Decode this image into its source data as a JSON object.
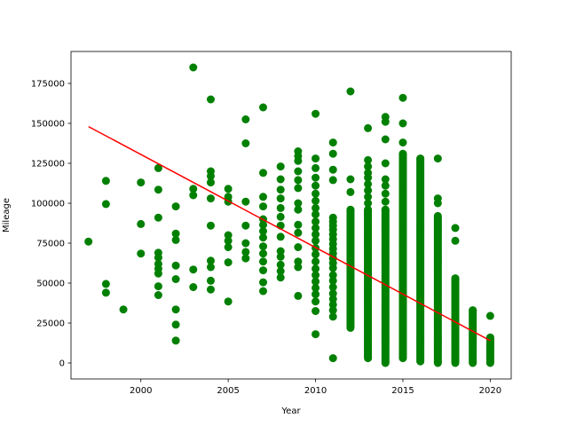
{
  "chart_data": {
    "type": "scatter",
    "title": "",
    "xlabel": "Year",
    "ylabel": "Mileage",
    "xlim": [
      1996,
      2021.2
    ],
    "ylim": [
      -10000,
      195000
    ],
    "xticks": [
      2000,
      2005,
      2010,
      2015,
      2020
    ],
    "yticks": [
      0,
      25000,
      50000,
      75000,
      100000,
      125000,
      150000,
      175000
    ],
    "xtick_labels": [
      "2000",
      "2005",
      "2010",
      "2015",
      "2020"
    ],
    "ytick_labels": [
      "0",
      "25000",
      "50000",
      "75000",
      "100000",
      "125000",
      "150000",
      "175000"
    ],
    "grid": false,
    "legend": "none",
    "series": [
      {
        "type": "scatter",
        "color": "#008000",
        "points": [
          [
            1997,
            76000
          ],
          [
            1998,
            114000
          ],
          [
            1998,
            99500
          ],
          [
            1998,
            49500
          ],
          [
            1998,
            44000
          ],
          [
            1999,
            33500
          ],
          [
            2000,
            113000
          ],
          [
            2000,
            87000
          ],
          [
            2000,
            68500
          ],
          [
            2001,
            122000
          ],
          [
            2001,
            108500
          ],
          [
            2001,
            91000
          ],
          [
            2001,
            69000
          ],
          [
            2001,
            66000
          ],
          [
            2001,
            62000
          ],
          [
            2001,
            59000
          ],
          [
            2001,
            56000
          ],
          [
            2001,
            48000
          ],
          [
            2001,
            42500
          ],
          [
            2002,
            98000
          ],
          [
            2002,
            81000
          ],
          [
            2002,
            77000
          ],
          [
            2002,
            61000
          ],
          [
            2002,
            52500
          ],
          [
            2002,
            33500
          ],
          [
            2002,
            24000
          ],
          [
            2002,
            14000
          ],
          [
            2003,
            185000
          ],
          [
            2003,
            109000
          ],
          [
            2003,
            105000
          ],
          [
            2003,
            58500
          ],
          [
            2003,
            47500
          ],
          [
            2004,
            165000
          ],
          [
            2004,
            120000
          ],
          [
            2004,
            117000
          ],
          [
            2004,
            113000
          ],
          [
            2004,
            103000
          ],
          [
            2004,
            86000
          ],
          [
            2004,
            64000
          ],
          [
            2004,
            60000
          ],
          [
            2004,
            51500
          ],
          [
            2004,
            46000
          ],
          [
            2005,
            109000
          ],
          [
            2005,
            104000
          ],
          [
            2005,
            101000
          ],
          [
            2005,
            80000
          ],
          [
            2005,
            76500
          ],
          [
            2005,
            72500
          ],
          [
            2005,
            63000
          ],
          [
            2005,
            38500
          ],
          [
            2006,
            152500
          ],
          [
            2006,
            137500
          ],
          [
            2006,
            101000
          ],
          [
            2006,
            86000
          ],
          [
            2006,
            75000
          ],
          [
            2006,
            69500
          ],
          [
            2006,
            65500
          ],
          [
            2007,
            160000
          ],
          [
            2007,
            119000
          ],
          [
            2007,
            104000
          ],
          [
            2007,
            98000
          ],
          [
            2007,
            90000
          ],
          [
            2007,
            86500
          ],
          [
            2007,
            82500
          ],
          [
            2007,
            78500
          ],
          [
            2007,
            73000
          ],
          [
            2007,
            68500
          ],
          [
            2007,
            63500
          ],
          [
            2007,
            58000
          ],
          [
            2007,
            50500
          ],
          [
            2007,
            45000
          ],
          [
            2008,
            123000
          ],
          [
            2008,
            115000
          ],
          [
            2008,
            108500
          ],
          [
            2008,
            103000
          ],
          [
            2008,
            97000
          ],
          [
            2008,
            91500
          ],
          [
            2008,
            86000
          ],
          [
            2008,
            79000
          ],
          [
            2008,
            70000
          ],
          [
            2008,
            66500
          ],
          [
            2008,
            61500
          ],
          [
            2008,
            57500
          ],
          [
            2008,
            53500
          ],
          [
            2009,
            132500
          ],
          [
            2009,
            129500
          ],
          [
            2009,
            126500
          ],
          [
            2009,
            120000
          ],
          [
            2009,
            114500
          ],
          [
            2009,
            109500
          ],
          [
            2009,
            100000
          ],
          [
            2009,
            96000
          ],
          [
            2009,
            86500
          ],
          [
            2009,
            81500
          ],
          [
            2009,
            72500
          ],
          [
            2009,
            63500
          ],
          [
            2009,
            60000
          ],
          [
            2009,
            42000
          ],
          [
            2010,
            156000
          ],
          [
            2010,
            128000
          ],
          [
            2010,
            122000
          ],
          [
            2010,
            116000
          ],
          [
            2010,
            111000
          ],
          [
            2010,
            106000
          ],
          [
            2010,
            101500
          ],
          [
            2010,
            97000
          ],
          [
            2010,
            93000
          ],
          [
            2010,
            88500
          ],
          [
            2010,
            84500
          ],
          [
            2010,
            80500
          ],
          [
            2010,
            76500
          ],
          [
            2010,
            72000
          ],
          [
            2010,
            68000
          ],
          [
            2010,
            63500
          ],
          [
            2010,
            59000
          ],
          [
            2010,
            55000
          ],
          [
            2010,
            51000
          ],
          [
            2010,
            47000
          ],
          [
            2010,
            43000
          ],
          [
            2010,
            38500
          ],
          [
            2010,
            32500
          ],
          [
            2010,
            18000
          ],
          [
            2011,
            138000
          ],
          [
            2011,
            131000
          ],
          [
            2011,
            121000
          ],
          [
            2011,
            114500
          ],
          [
            2011,
            91000
          ],
          [
            2011,
            88500
          ],
          [
            2011,
            86000
          ],
          [
            2011,
            83500
          ],
          [
            2011,
            80500
          ],
          [
            2011,
            77500
          ],
          [
            2011,
            74500
          ],
          [
            2011,
            71500
          ],
          [
            2011,
            68500
          ],
          [
            2011,
            65500
          ],
          [
            2011,
            62500
          ],
          [
            2011,
            59500
          ],
          [
            2011,
            55000
          ],
          [
            2011,
            51500
          ],
          [
            2011,
            47500
          ],
          [
            2011,
            43500
          ],
          [
            2011,
            40000
          ],
          [
            2011,
            36500
          ],
          [
            2011,
            33000
          ],
          [
            2011,
            29000
          ],
          [
            2011,
            3000
          ]
        ],
        "columns": [
          {
            "x": 2012,
            "from": 22000,
            "to": 96000,
            "extra": [
              170000,
              115000,
              107000
            ]
          },
          {
            "x": 2013,
            "from": 3000,
            "to": 96000,
            "extra": [
              147000,
              127000,
              123000,
              119000,
              116000,
              112000,
              108000,
              104000,
              100000
            ]
          },
          {
            "x": 2014,
            "from": 0,
            "to": 96000,
            "extra": [
              154000,
              151000,
              140000,
              125000,
              115000,
              111000,
              106000,
              101000
            ]
          },
          {
            "x": 2015,
            "from": 3000,
            "to": 131000,
            "extra": [
              166000,
              150000,
              138000
            ]
          },
          {
            "x": 2016,
            "from": 1000,
            "to": 128000,
            "extra": []
          },
          {
            "x": 2017,
            "from": 0,
            "to": 92000,
            "extra": [
              128000,
              103000,
              100000
            ]
          },
          {
            "x": 2018,
            "from": 0,
            "to": 53000,
            "extra": [
              84500,
              76500
            ]
          },
          {
            "x": 2019,
            "from": 0,
            "to": 33000,
            "extra": []
          },
          {
            "x": 2020,
            "from": 0,
            "to": 16000,
            "extra": [
              29500
            ]
          }
        ]
      },
      {
        "type": "line",
        "color": "#ff0000",
        "points": [
          [
            1997,
            148000
          ],
          [
            2020,
            14000
          ]
        ]
      }
    ]
  }
}
